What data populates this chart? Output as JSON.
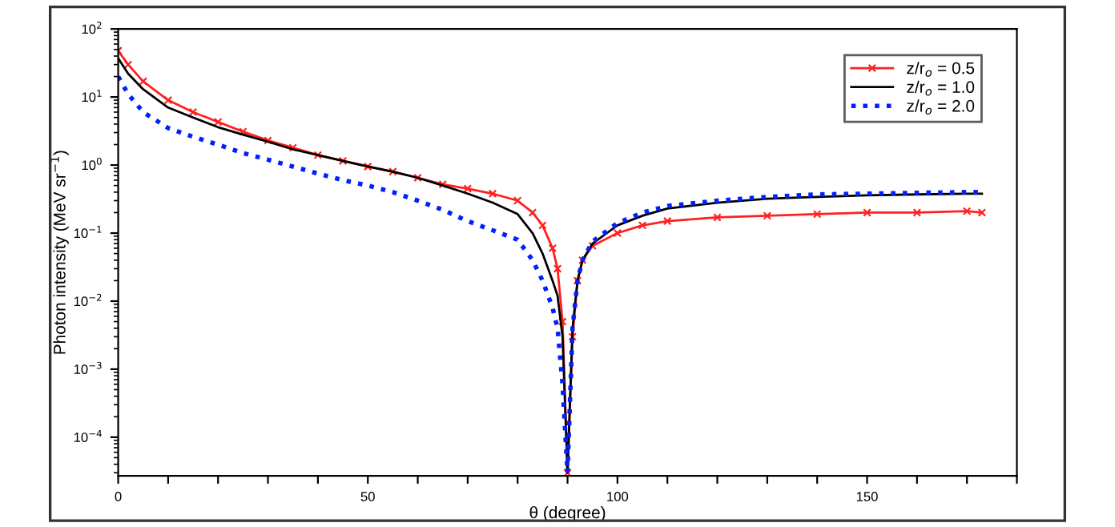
{
  "chart_data": {
    "type": "line",
    "xlabel": "θ (degree)",
    "ylabel": "Photon intensity (MeV sr$^{−1}$)",
    "log": "y",
    "xlim": [
      0,
      180
    ],
    "xticks": [
      0,
      {
        "value": 10,
        "label": null
      },
      {
        "value": 20,
        "label": null
      },
      {
        "value": 30,
        "label": null
      },
      {
        "value": 40,
        "label": null
      },
      50,
      {
        "value": 60,
        "label": null
      },
      {
        "value": 70,
        "label": null
      },
      {
        "value": 80,
        "label": null
      },
      {
        "value": 90,
        "label": null
      },
      100,
      {
        "value": 110,
        "label": null
      },
      {
        "value": 120,
        "label": null
      },
      {
        "value": 130,
        "label": null
      },
      {
        "value": 140,
        "label": null
      },
      150,
      {
        "value": 160,
        "label": null
      },
      {
        "value": 170,
        "label": null
      },
      {
        "value": 180,
        "label": null
      }
    ],
    "ylim": [
      2.7e-05,
      100
    ],
    "yticks": [
      {
        "value": 0.0001,
        "label": "10$^{−4}$"
      },
      {
        "value": 0.001,
        "label": "10$^{−3}$"
      },
      {
        "value": 0.01,
        "label": "10$^{−2}$"
      },
      {
        "value": 0.1,
        "label": "10$^{−1}$"
      },
      {
        "value": 1,
        "label": "10$^{0}$"
      },
      {
        "value": 10,
        "label": "10$^{1}$"
      },
      {
        "value": 100,
        "label": "10$^{2}$"
      }
    ],
    "grid": false,
    "legend": "top right",
    "x": [
      0,
      2,
      5,
      10,
      15,
      20,
      25,
      30,
      35,
      40,
      45,
      50,
      55,
      60,
      65,
      70,
      75,
      80,
      83,
      85,
      87,
      88,
      89,
      90,
      91,
      92,
      93,
      95,
      100,
      105,
      110,
      120,
      130,
      140,
      150,
      160,
      170,
      173
    ],
    "series": [
      {
        "name": "z/r$_{o}$ = 0.5",
        "color": "#ff2020",
        "marker": "cross",
        "line_style": "solid",
        "values": [
          48,
          30,
          17,
          9,
          6,
          4.3,
          3.1,
          2.3,
          1.8,
          1.4,
          1.15,
          0.95,
          0.8,
          0.65,
          0.52,
          0.45,
          0.38,
          0.3,
          0.2,
          0.13,
          0.06,
          0.03,
          0.005,
          3e-05,
          0.003,
          0.02,
          0.04,
          0.065,
          0.1,
          0.13,
          0.15,
          0.17,
          0.18,
          0.19,
          0.2,
          0.2,
          0.21,
          0.2
        ]
      },
      {
        "name": "z/r$_{o}$ = 1.0",
        "color": "#000000",
        "marker": "none",
        "line_style": "solid",
        "values": [
          37,
          22,
          13,
          7,
          5,
          3.6,
          2.8,
          2.2,
          1.7,
          1.4,
          1.15,
          0.95,
          0.8,
          0.65,
          0.5,
          0.38,
          0.28,
          0.19,
          0.1,
          0.05,
          0.02,
          0.012,
          0.003,
          3e-05,
          0.004,
          0.02,
          0.04,
          0.07,
          0.13,
          0.18,
          0.23,
          0.28,
          0.32,
          0.34,
          0.36,
          0.37,
          0.38,
          0.38
        ]
      },
      {
        "name": "z/r$_{o}$ = 2.0",
        "color": "#0020ff",
        "marker": "none",
        "line_style": "dotted",
        "values": [
          20,
          11,
          6,
          3.5,
          2.6,
          2.0,
          1.5,
          1.2,
          0.95,
          0.75,
          0.6,
          0.5,
          0.4,
          0.3,
          0.22,
          0.15,
          0.11,
          0.08,
          0.04,
          0.02,
          0.008,
          0.004,
          0.0006,
          3e-05,
          0.004,
          0.02,
          0.04,
          0.075,
          0.14,
          0.2,
          0.25,
          0.3,
          0.34,
          0.37,
          0.38,
          0.39,
          0.4,
          0.4
        ]
      }
    ]
  }
}
